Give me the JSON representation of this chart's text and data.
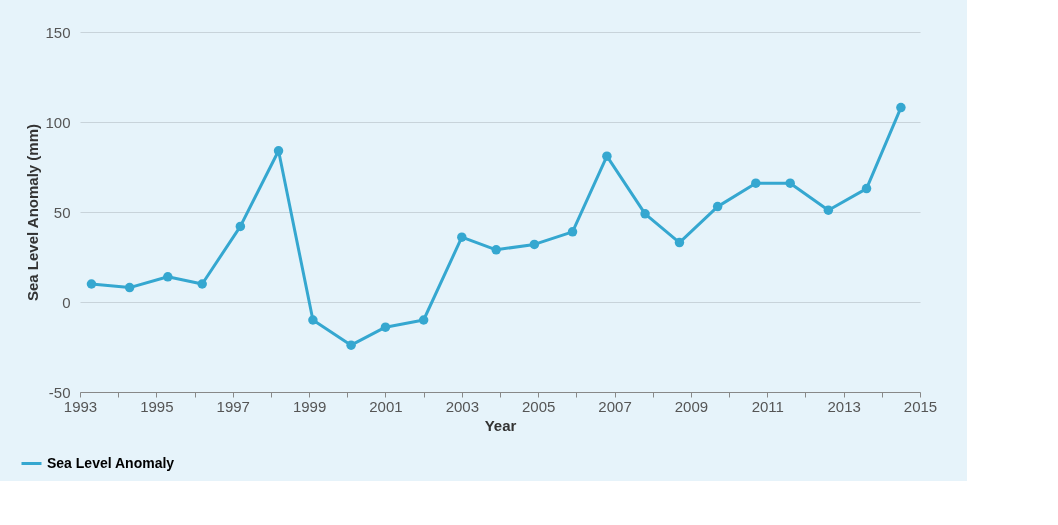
{
  "chart_data": {
    "type": "line",
    "xlabel": "Year",
    "ylabel": "Sea Level Anomaly (mm)",
    "x": [
      1993.3,
      1994.3,
      1995.3,
      1996.2,
      1997.2,
      1998.2,
      1999.1,
      2000.1,
      2001.0,
      2002.0,
      2003.0,
      2003.9,
      2004.9,
      2005.9,
      2006.8,
      2007.8,
      2008.7,
      2009.7,
      2010.7,
      2011.6,
      2012.6,
      2013.6,
      2014.5
    ],
    "series": [
      {
        "name": "Sea Level Anomaly",
        "color": "#35a7d0",
        "values": [
          10,
          8,
          14,
          10,
          42,
          84,
          -10,
          -24,
          -14,
          -10,
          36,
          29,
          32,
          39,
          81,
          49,
          33,
          53,
          66,
          66,
          51,
          63,
          108
        ]
      }
    ],
    "xlim": [
      1993,
      2015
    ],
    "xticks": [
      1993,
      {
        "value": 1994,
        "label": null
      },
      1995,
      {
        "value": 1996,
        "label": null
      },
      1997,
      {
        "value": 1998,
        "label": null
      },
      1999,
      {
        "value": 2000,
        "label": null
      },
      2001,
      {
        "value": 2002,
        "label": null
      },
      2003,
      {
        "value": 2004,
        "label": null
      },
      2005,
      {
        "value": 2006,
        "label": null
      },
      2007,
      {
        "value": 2008,
        "label": null
      },
      2009,
      {
        "value": 2010,
        "label": null
      },
      2011,
      {
        "value": 2012,
        "label": null
      },
      2013,
      {
        "value": 2014,
        "label": null
      },
      2015
    ],
    "ylim": [
      -50,
      150
    ],
    "yticks": [
      -50,
      0,
      50,
      100,
      150
    ],
    "grid": "y",
    "legend": "bottom left",
    "marker": "circle",
    "line_style": "solid"
  }
}
